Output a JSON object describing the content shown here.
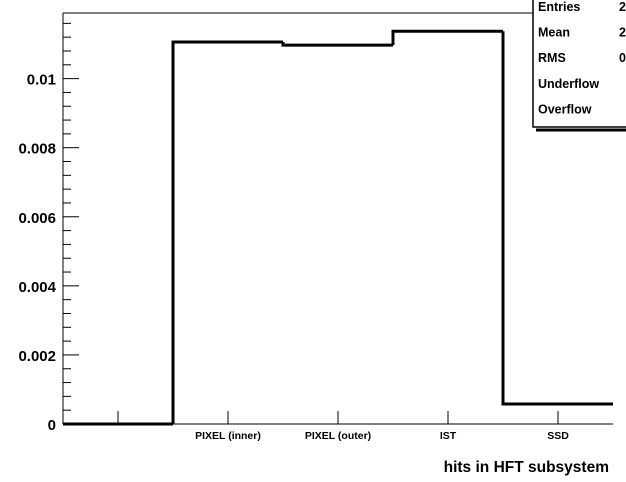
{
  "chart_data": {
    "type": "bar",
    "xlabel": "hits in HFT subsystem",
    "ylabel": "",
    "categories": [
      "",
      "PIXEL (inner)",
      "PIXEL (outer)",
      "IST",
      "SSD"
    ],
    "values": [
      0,
      0.01106,
      0.01097,
      0.01137,
      0.00058
    ],
    "ylim": [
      0,
      0.0119
    ],
    "yticks": [
      0,
      0.002,
      0.004,
      0.006,
      0.008,
      0.01
    ],
    "ytick_labels": [
      "0",
      "0.002",
      "0.004",
      "0.006",
      "0.008",
      "0.01"
    ],
    "grid": false,
    "legend": "none",
    "stats_box": {
      "placement": "top-right",
      "rows": [
        {
          "label": "Entries",
          "value": "2"
        },
        {
          "label": "Mean",
          "value": "2"
        },
        {
          "label": "RMS",
          "value": "0"
        },
        {
          "label": "Underflow",
          "value": ""
        },
        {
          "label": "Overflow",
          "value": ""
        }
      ]
    },
    "colors": {
      "line": "#000000",
      "background": "#ffffff"
    }
  }
}
